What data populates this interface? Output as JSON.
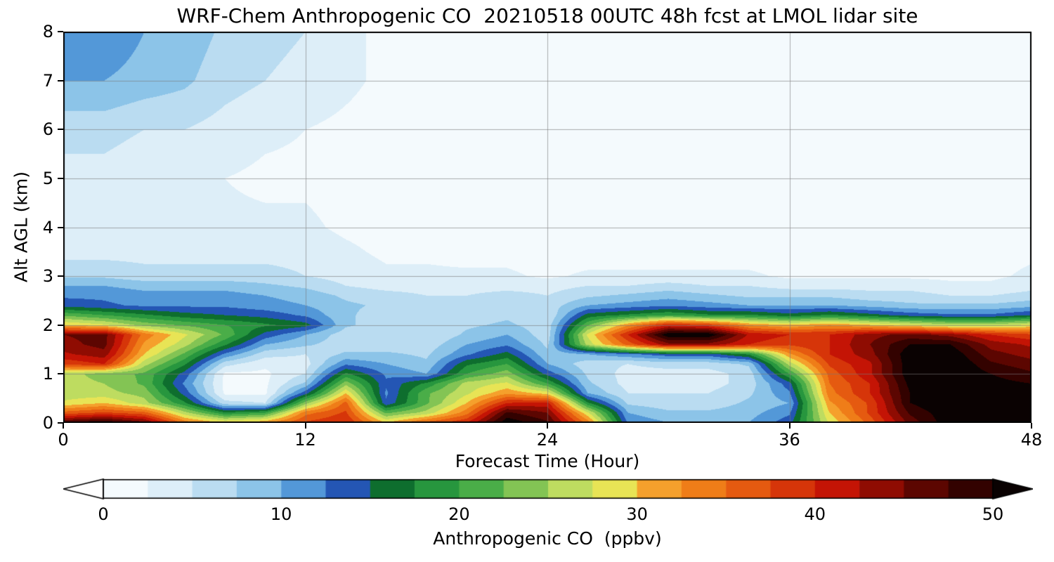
{
  "figure": {
    "background": "#ffffff"
  },
  "axes": {
    "xticks": [
      0,
      12,
      24,
      36,
      48
    ],
    "yticks": [
      0,
      1,
      2,
      3,
      4,
      5,
      6,
      7,
      8
    ],
    "grid_x": [
      12,
      24,
      36
    ],
    "grid_y": [
      1,
      2,
      3,
      4,
      5,
      6,
      7
    ],
    "grid_color": "rgba(120,120,120,0.6)",
    "frame_color": "#000000"
  },
  "colorbar": {
    "label": "Anthropogenic CO  (ppbv)",
    "ticks": [
      0,
      10,
      20,
      30,
      40,
      50
    ],
    "vmin": 0,
    "vmax": 50,
    "step": 2.5,
    "under_color": "#ffffff",
    "over_color": "#0a0202",
    "segment_colors": [
      "#f4fafd",
      "#ddeef8",
      "#badcf1",
      "#8cc4e8",
      "#5398d8",
      "#2456b4",
      "#0e6e2e",
      "#27963e",
      "#4aad48",
      "#83c454",
      "#bedc60",
      "#e8e455",
      "#f5a02c",
      "#ef7d18",
      "#e55a10",
      "#d63509",
      "#c41405",
      "#8f0c02",
      "#5c0601",
      "#330200"
    ]
  },
  "chart_data": {
    "type": "heatmap",
    "title": "WRF-Chem Anthropogenic CO  20210518 00UTC 48h fcst at LMOL lidar site",
    "xlabel": "Forecast Time (Hour)",
    "ylabel": "Alt AGL (km)",
    "xlim": [
      0,
      48
    ],
    "ylim": [
      0,
      8
    ],
    "grid_on": true,
    "colorbar_orientation": "horizontal",
    "x_hours": [
      0,
      2,
      4,
      6,
      8,
      10,
      12,
      14,
      16,
      18,
      20,
      22,
      24,
      26,
      28,
      30,
      32,
      34,
      36,
      38,
      40,
      42,
      44,
      46,
      48
    ],
    "y_km": [
      0,
      0.2,
      0.4,
      0.6,
      0.8,
      1.0,
      1.2,
      1.4,
      1.6,
      1.8,
      2.0,
      2.2,
      2.4,
      2.6,
      2.8,
      3.0,
      3.5,
      4.0,
      5.0,
      6.0,
      7.0,
      8.0
    ],
    "units": "ppbv",
    "values_ppbv": [
      [
        48,
        50,
        46,
        34,
        30,
        32,
        38,
        40,
        30,
        36,
        40,
        52,
        48,
        34,
        12,
        10,
        10,
        10,
        14,
        28,
        36,
        46,
        52,
        53,
        52
      ],
      [
        36,
        38,
        36,
        26,
        18,
        20,
        34,
        38,
        22,
        26,
        34,
        48,
        45,
        28,
        10,
        8,
        8,
        9,
        12,
        30,
        38,
        48,
        52,
        53,
        52
      ],
      [
        28,
        30,
        26,
        18,
        6,
        5,
        24,
        36,
        13,
        22,
        30,
        40,
        41,
        18,
        7,
        6,
        6,
        8,
        10,
        32,
        38,
        50,
        53,
        52,
        52
      ],
      [
        26,
        26,
        24,
        14,
        2,
        2,
        14,
        30,
        12,
        22,
        27,
        32,
        29,
        10,
        5,
        5,
        5,
        7,
        12,
        34,
        40,
        50,
        53,
        52,
        51
      ],
      [
        26,
        25,
        22,
        12,
        2,
        2,
        8,
        24,
        13,
        18,
        26,
        28,
        20,
        8,
        4,
        4,
        4,
        6,
        14,
        35,
        40,
        51,
        53,
        51,
        50
      ],
      [
        26,
        24,
        22,
        14,
        2,
        2,
        5,
        18,
        12,
        10,
        20,
        24,
        14,
        7,
        4,
        4,
        4,
        6,
        20,
        36,
        42,
        52,
        53,
        50,
        48
      ],
      [
        38,
        40,
        26,
        18,
        6,
        3,
        4,
        12,
        10,
        8,
        17,
        20,
        10,
        6,
        5,
        6,
        6,
        8,
        26,
        38,
        42,
        52,
        53,
        48,
        46
      ],
      [
        42,
        44,
        30,
        22,
        12,
        6,
        5,
        8,
        8,
        7,
        12,
        16,
        8,
        10,
        12,
        14,
        14,
        18,
        32,
        40,
        44,
        52,
        52,
        46,
        44
      ],
      [
        44,
        46,
        32,
        26,
        18,
        10,
        8,
        6,
        6,
        6,
        10,
        12,
        7,
        26,
        36,
        44,
        44,
        40,
        38,
        40,
        45,
        50,
        50,
        44,
        42
      ],
      [
        45,
        46,
        34,
        28,
        22,
        14,
        10,
        6,
        5,
        5,
        8,
        10,
        6,
        28,
        40,
        52,
        52,
        42,
        40,
        40,
        44,
        46,
        44,
        40,
        38
      ],
      [
        30,
        28,
        24,
        22,
        20,
        18,
        16,
        8,
        6,
        6,
        7,
        8,
        6,
        22,
        32,
        40,
        38,
        32,
        30,
        32,
        30,
        28,
        26,
        26,
        28
      ],
      [
        22,
        20,
        18,
        16,
        15,
        14,
        12,
        8,
        6,
        5,
        6,
        7,
        5,
        16,
        18,
        20,
        18,
        18,
        16,
        18,
        16,
        14,
        13,
        13,
        15
      ],
      [
        14,
        13,
        12,
        12,
        12,
        11,
        10,
        8,
        7,
        6,
        6,
        7,
        6,
        10,
        11,
        12,
        11,
        10,
        10,
        10,
        9,
        8,
        8,
        8,
        9
      ],
      [
        12,
        12,
        11,
        11,
        11,
        10,
        9,
        7,
        6,
        5,
        5,
        6,
        5,
        7,
        8,
        9,
        8,
        7,
        7,
        7,
        6,
        6,
        5,
        5,
        6
      ],
      [
        10,
        10,
        9,
        9,
        9,
        8,
        7,
        5,
        4,
        4,
        4,
        4,
        4,
        5,
        5,
        6,
        5,
        5,
        4,
        4,
        4,
        4,
        3,
        3,
        4
      ],
      [
        7,
        7,
        6,
        6,
        6,
        6,
        5,
        4,
        3,
        3,
        3,
        3,
        2,
        3,
        3,
        3,
        3,
        3,
        2,
        2,
        2,
        2,
        2,
        2,
        3
      ],
      [
        4,
        4,
        4,
        4,
        4,
        4,
        4,
        3,
        2,
        2,
        1.5,
        1.5,
        1,
        1,
        1,
        1,
        1,
        1,
        1,
        1,
        1,
        1,
        1,
        1.5,
        2
      ],
      [
        3,
        3,
        3,
        3,
        3,
        3,
        3,
        2,
        1.5,
        1,
        1,
        1,
        0.8,
        0.8,
        0.8,
        0.8,
        0.8,
        0.8,
        0.8,
        0.8,
        0.8,
        0.8,
        0.8,
        1,
        1.5
      ],
      [
        4,
        4,
        3,
        3,
        2.5,
        2,
        2,
        1.5,
        1,
        1,
        0.8,
        0.8,
        0.6,
        0.6,
        0.6,
        0.6,
        0.6,
        0.6,
        0.6,
        0.6,
        0.6,
        0.6,
        0.6,
        0.8,
        1
      ],
      [
        6,
        6,
        5,
        5,
        4,
        3,
        2.5,
        2,
        1.5,
        1,
        1,
        0.8,
        0.6,
        0.6,
        0.5,
        0.5,
        0.5,
        0.5,
        0.5,
        0.5,
        0.5,
        0.5,
        0.5,
        0.6,
        0.8
      ],
      [
        10,
        10,
        9,
        8,
        6,
        5,
        4,
        3,
        2,
        1.5,
        1,
        1,
        0.8,
        0.6,
        0.5,
        0.5,
        0.5,
        0.5,
        0.5,
        0.5,
        0.5,
        0.5,
        0.5,
        0.5,
        0.5
      ],
      [
        11,
        12,
        10,
        9,
        7,
        6,
        5,
        3,
        2,
        1.5,
        1,
        1,
        0.8,
        0.6,
        0.5,
        0.5,
        0.5,
        0.5,
        0.5,
        0.5,
        0.5,
        0.5,
        0.5,
        0.5,
        0.5
      ]
    ]
  }
}
